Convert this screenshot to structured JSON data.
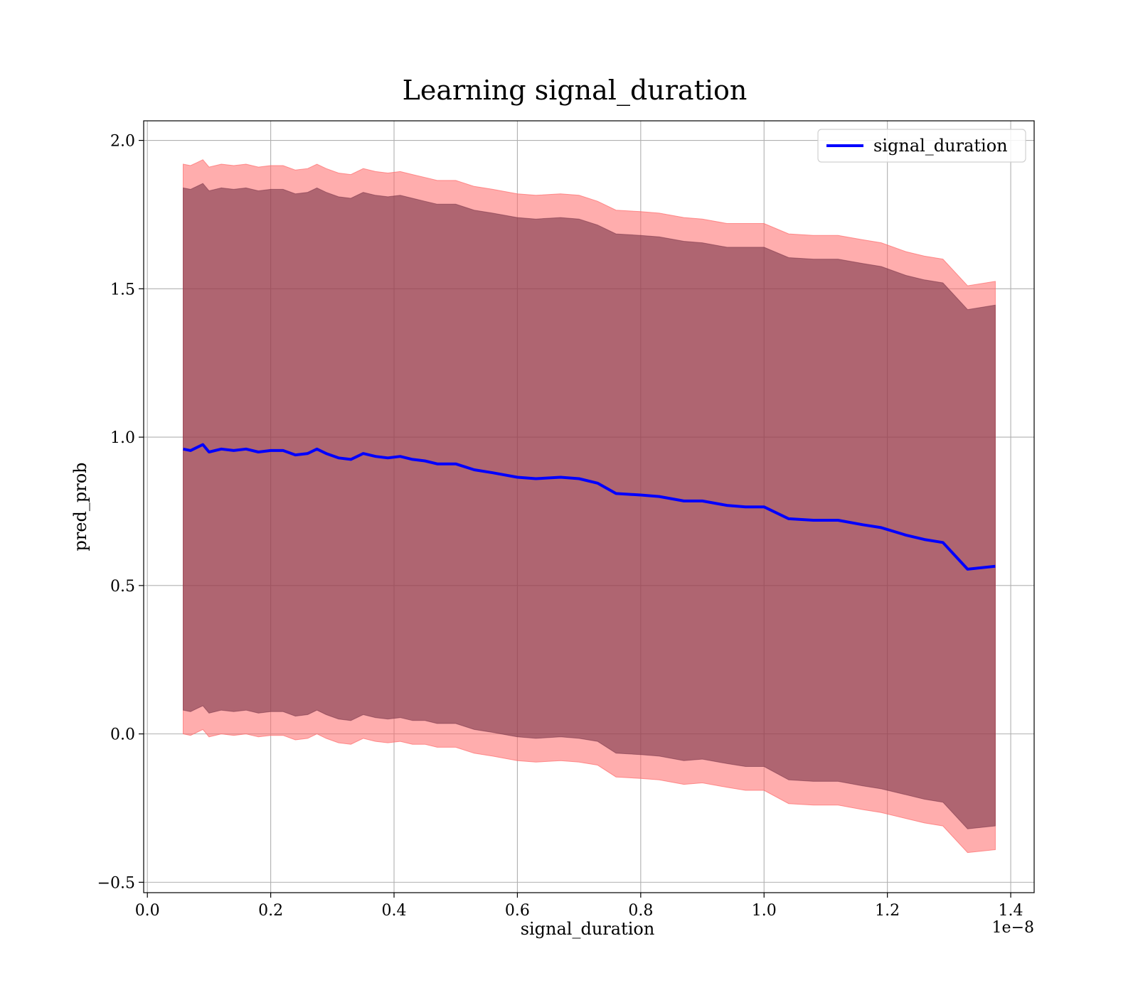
{
  "chart_data": {
    "type": "line",
    "title": "Learning signal_duration",
    "xlabel": "signal_duration",
    "ylabel": "pred_prob",
    "x_offset_text": "1e−8",
    "x_scale": 1e-08,
    "xlim": [
      -0.006,
      1.438
    ],
    "ylim": [
      -0.535,
      2.066
    ],
    "x_ticks": [
      0.0,
      0.2,
      0.4,
      0.6,
      0.8,
      1.0,
      1.2,
      1.4
    ],
    "x_tick_labels": [
      "0.0",
      "0.2",
      "0.4",
      "0.6",
      "0.8",
      "1.0",
      "1.2",
      "1.4"
    ],
    "y_ticks": [
      -0.5,
      0.0,
      0.5,
      1.0,
      1.5,
      2.0
    ],
    "y_tick_labels": [
      "−0.5",
      "0.0",
      "0.5",
      "1.0",
      "1.5",
      "2.0"
    ],
    "grid": true,
    "legend": {
      "position": "top-right",
      "entries": [
        "signal_duration"
      ]
    },
    "colors": {
      "line": "#0000ff",
      "outer_band": "#ff6a6a",
      "outer_band_opacity": 0.55,
      "inner_band": "#6e2a40",
      "inner_band_opacity": 0.55,
      "grid": "#b0b0b0"
    },
    "series": [
      {
        "name": "signal_duration",
        "x": [
          0.058,
          0.07,
          0.08,
          0.09,
          0.1,
          0.12,
          0.14,
          0.16,
          0.18,
          0.2,
          0.22,
          0.24,
          0.26,
          0.275,
          0.29,
          0.31,
          0.33,
          0.35,
          0.37,
          0.39,
          0.41,
          0.43,
          0.45,
          0.47,
          0.5,
          0.53,
          0.56,
          0.6,
          0.63,
          0.67,
          0.7,
          0.73,
          0.76,
          0.8,
          0.83,
          0.87,
          0.9,
          0.94,
          0.97,
          1.0,
          1.04,
          1.08,
          1.12,
          1.16,
          1.19,
          1.23,
          1.26,
          1.29,
          1.33,
          1.375
        ],
        "y": [
          0.96,
          0.955,
          0.965,
          0.975,
          0.95,
          0.96,
          0.955,
          0.96,
          0.95,
          0.955,
          0.955,
          0.94,
          0.945,
          0.96,
          0.945,
          0.93,
          0.925,
          0.945,
          0.935,
          0.93,
          0.935,
          0.925,
          0.92,
          0.91,
          0.91,
          0.89,
          0.88,
          0.865,
          0.86,
          0.865,
          0.86,
          0.845,
          0.81,
          0.805,
          0.8,
          0.785,
          0.785,
          0.77,
          0.765,
          0.765,
          0.725,
          0.72,
          0.72,
          0.705,
          0.695,
          0.67,
          0.655,
          0.645,
          0.555,
          0.565
        ],
        "band_outer_upper": [
          1.92,
          1.915,
          1.925,
          1.935,
          1.91,
          1.92,
          1.915,
          1.92,
          1.91,
          1.915,
          1.915,
          1.9,
          1.905,
          1.92,
          1.905,
          1.89,
          1.885,
          1.905,
          1.895,
          1.89,
          1.895,
          1.885,
          1.875,
          1.865,
          1.865,
          1.845,
          1.835,
          1.82,
          1.815,
          1.82,
          1.815,
          1.795,
          1.765,
          1.76,
          1.755,
          1.74,
          1.735,
          1.72,
          1.72,
          1.72,
          1.685,
          1.68,
          1.68,
          1.665,
          1.655,
          1.625,
          1.61,
          1.6,
          1.51,
          1.525
        ],
        "band_outer_lower": [
          0.0,
          -0.005,
          0.005,
          0.015,
          -0.01,
          0.0,
          -0.005,
          0.0,
          -0.01,
          -0.005,
          -0.005,
          -0.02,
          -0.015,
          0.0,
          -0.015,
          -0.03,
          -0.035,
          -0.015,
          -0.025,
          -0.03,
          -0.025,
          -0.035,
          -0.035,
          -0.045,
          -0.045,
          -0.065,
          -0.075,
          -0.09,
          -0.095,
          -0.09,
          -0.095,
          -0.105,
          -0.145,
          -0.15,
          -0.155,
          -0.17,
          -0.165,
          -0.18,
          -0.19,
          -0.19,
          -0.235,
          -0.24,
          -0.24,
          -0.255,
          -0.265,
          -0.285,
          -0.3,
          -0.31,
          -0.4,
          -0.39
        ],
        "band_inner_upper": [
          1.84,
          1.835,
          1.845,
          1.855,
          1.83,
          1.84,
          1.835,
          1.84,
          1.83,
          1.835,
          1.835,
          1.82,
          1.825,
          1.84,
          1.825,
          1.81,
          1.805,
          1.825,
          1.815,
          1.81,
          1.815,
          1.805,
          1.795,
          1.785,
          1.785,
          1.765,
          1.755,
          1.74,
          1.735,
          1.74,
          1.735,
          1.715,
          1.685,
          1.68,
          1.675,
          1.66,
          1.655,
          1.64,
          1.64,
          1.64,
          1.605,
          1.6,
          1.6,
          1.585,
          1.575,
          1.545,
          1.53,
          1.52,
          1.43,
          1.445
        ],
        "band_inner_lower": [
          0.08,
          0.075,
          0.085,
          0.095,
          0.07,
          0.08,
          0.075,
          0.08,
          0.07,
          0.075,
          0.075,
          0.06,
          0.065,
          0.08,
          0.065,
          0.05,
          0.045,
          0.065,
          0.055,
          0.05,
          0.055,
          0.045,
          0.045,
          0.035,
          0.035,
          0.015,
          0.005,
          -0.01,
          -0.015,
          -0.01,
          -0.015,
          -0.025,
          -0.065,
          -0.07,
          -0.075,
          -0.09,
          -0.085,
          -0.1,
          -0.11,
          -0.11,
          -0.155,
          -0.16,
          -0.16,
          -0.175,
          -0.185,
          -0.205,
          -0.22,
          -0.23,
          -0.32,
          -0.31
        ]
      }
    ]
  }
}
